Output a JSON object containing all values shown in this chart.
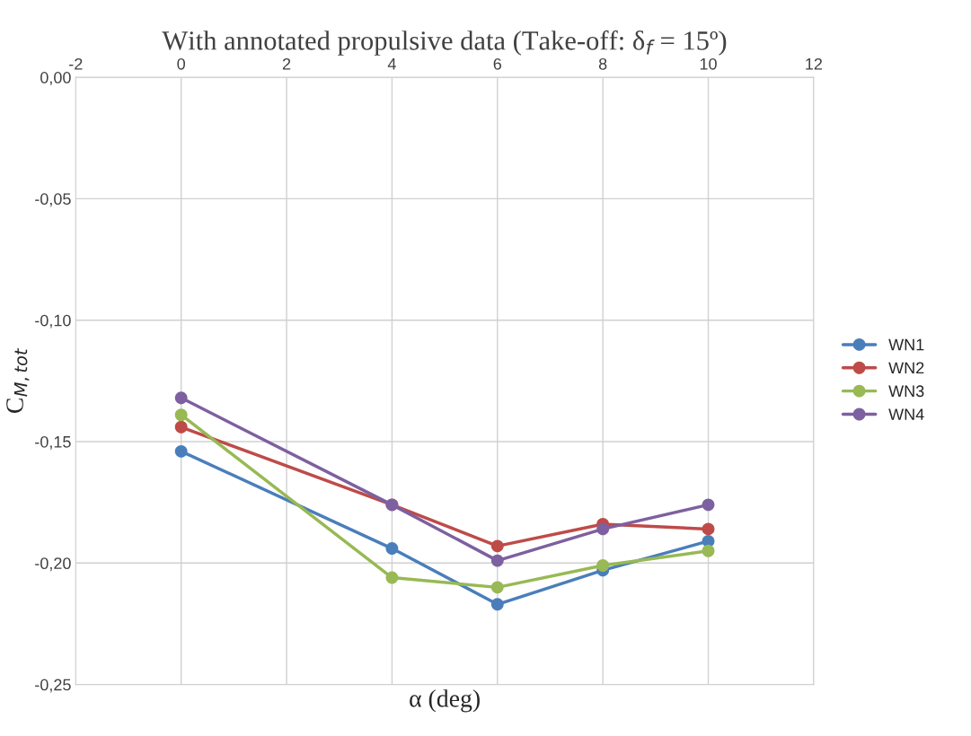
{
  "chart_data": {
    "type": "line",
    "title": "With annotated propulsive data (Take-off: δ$_{f}$ = 15º)",
    "xlabel": "α (deg)",
    "ylabel": "C$_{M,tot}$",
    "x": [
      0,
      4,
      6,
      8,
      10
    ],
    "series": [
      {
        "name": "WN1",
        "color": "#4a7ebb",
        "values": [
          -0.154,
          -0.194,
          -0.217,
          -0.203,
          -0.191
        ]
      },
      {
        "name": "WN2",
        "color": "#be4b48",
        "values": [
          -0.144,
          -0.176,
          -0.193,
          -0.184,
          -0.186
        ]
      },
      {
        "name": "WN3",
        "color": "#98b954",
        "values": [
          -0.139,
          -0.206,
          -0.21,
          -0.201,
          -0.195
        ]
      },
      {
        "name": "WN4",
        "color": "#7d60a0",
        "values": [
          -0.132,
          -0.176,
          -0.199,
          -0.186,
          -0.176
        ]
      }
    ],
    "xlim": [
      -2,
      12
    ],
    "xticks": [
      -2,
      0,
      2,
      4,
      6,
      8,
      10,
      12
    ],
    "ylim": [
      -0.25,
      0
    ],
    "yticks": [
      {
        "value": -0.25,
        "label": "-0,25"
      },
      {
        "value": -0.2,
        "label": "-0,20"
      },
      {
        "value": -0.15,
        "label": "-0,15"
      },
      {
        "value": -0.1,
        "label": "-0,10"
      },
      {
        "value": -0.05,
        "label": "-0,05"
      },
      {
        "value": 0,
        "label": "0,00"
      }
    ],
    "grid": true,
    "legend": "right",
    "marker": "circle",
    "line_style": "solid"
  }
}
